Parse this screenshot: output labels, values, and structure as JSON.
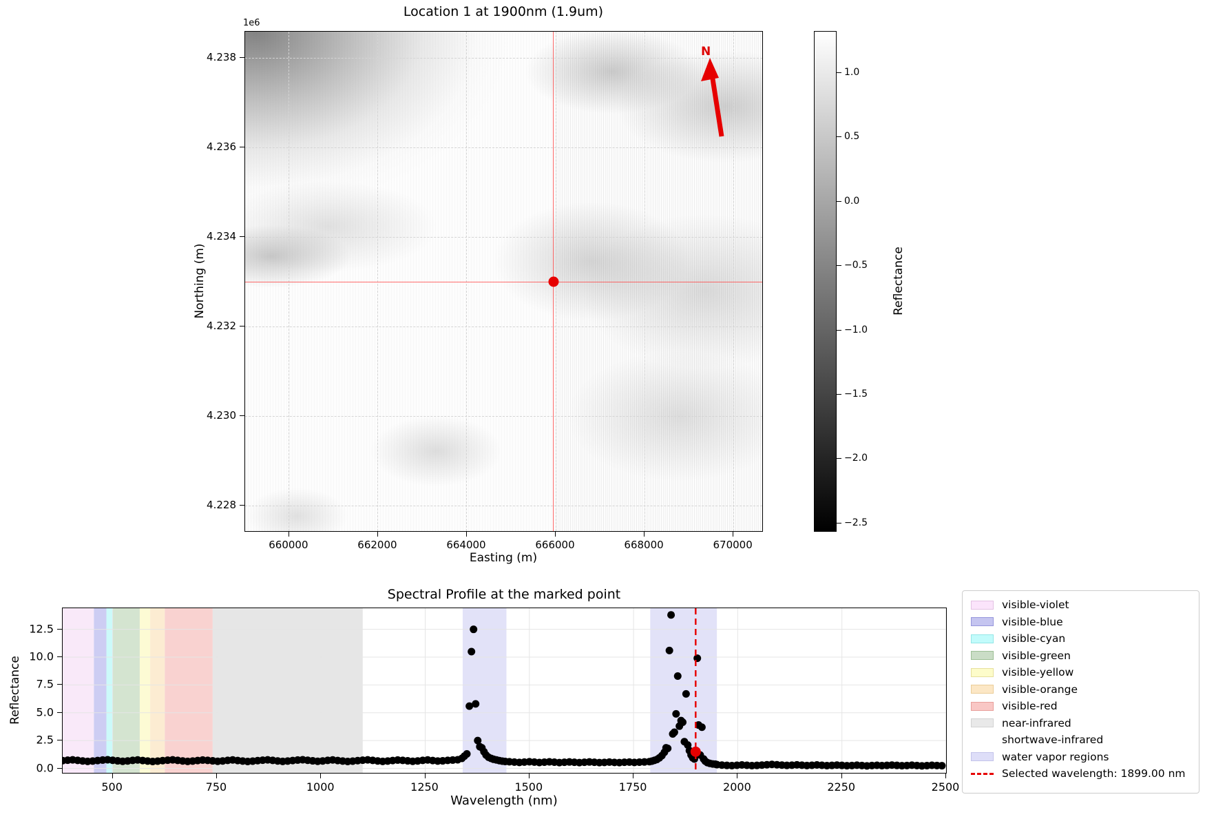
{
  "chart_data": [
    {
      "id": "location-map",
      "type": "heatmap",
      "title": "Location 1 at 1900nm (1.9um)",
      "xlabel": "Easting (m)",
      "ylabel": "Northing (m)",
      "offset_label": "1e6",
      "grid": true,
      "x_range": [
        659010,
        670680
      ],
      "y_range": [
        4227400,
        4238585
      ],
      "x_ticks": [
        {
          "v": 660000,
          "label": "660000"
        },
        {
          "v": 662000,
          "label": "662000"
        },
        {
          "v": 664000,
          "label": "664000"
        },
        {
          "v": 666000,
          "label": "666000"
        },
        {
          "v": 668000,
          "label": "668000"
        },
        {
          "v": 670000,
          "label": "670000"
        }
      ],
      "y_ticks": [
        {
          "v": 4238000,
          "label": "4.238"
        },
        {
          "v": 4236000,
          "label": "4.236"
        },
        {
          "v": 4234000,
          "label": "4.234"
        },
        {
          "v": 4232000,
          "label": "4.232"
        },
        {
          "v": 4230000,
          "label": "4.230"
        },
        {
          "v": 4228000,
          "label": "4.228"
        }
      ],
      "north_arrow_label": "N",
      "marked_point": {
        "easting": 665950,
        "northing": 4233000
      },
      "marker_color": "#e60000",
      "crosshair_color": "#ff5555",
      "colorbar": {
        "label": "Reflectance",
        "range": [
          -2.57,
          1.32
        ],
        "cmap": "gray",
        "ticks": [
          {
            "v": 1.0,
            "label": "1.0"
          },
          {
            "v": 0.5,
            "label": "0.5"
          },
          {
            "v": 0.0,
            "label": "0.0"
          },
          {
            "v": -0.5,
            "label": "−0.5"
          },
          {
            "v": -1.0,
            "label": "−1.0"
          },
          {
            "v": -1.5,
            "label": "−1.5"
          },
          {
            "v": -2.0,
            "label": "−2.0"
          },
          {
            "v": -2.5,
            "label": "−2.5"
          }
        ]
      }
    },
    {
      "id": "spectral-profile",
      "type": "scatter",
      "title": "Spectral Profile at the marked point",
      "xlabel": "Wavelength (nm)",
      "ylabel": "Reflectance",
      "xlim": [
        380,
        2500
      ],
      "ylim": [
        -0.4,
        14.4
      ],
      "grid": true,
      "marker_color": "#000000",
      "x_ticks": [
        {
          "v": 500,
          "label": "500"
        },
        {
          "v": 750,
          "label": "750"
        },
        {
          "v": 1000,
          "label": "1000"
        },
        {
          "v": 1250,
          "label": "1250"
        },
        {
          "v": 1500,
          "label": "1500"
        },
        {
          "v": 1750,
          "label": "1750"
        },
        {
          "v": 2000,
          "label": "2000"
        },
        {
          "v": 2250,
          "label": "2250"
        },
        {
          "v": 2500,
          "label": "2500"
        }
      ],
      "y_ticks": [
        {
          "v": 0.0,
          "label": "0.0"
        },
        {
          "v": 2.5,
          "label": "2.5"
        },
        {
          "v": 5.0,
          "label": "5.0"
        },
        {
          "v": 7.5,
          "label": "7.5"
        },
        {
          "v": 10.0,
          "label": "10.0"
        },
        {
          "v": 12.5,
          "label": "12.5"
        }
      ],
      "bands": [
        {
          "name": "visible-violet",
          "range": [
            380,
            455
          ],
          "color": "#f9e9f9"
        },
        {
          "name": "visible-blue",
          "range": [
            455,
            485
          ],
          "color": "#cdcdf3"
        },
        {
          "name": "visible-cyan",
          "range": [
            485,
            500
          ],
          "color": "#ccfafa"
        },
        {
          "name": "visible-green",
          "range": [
            500,
            565
          ],
          "color": "#d4e4d0"
        },
        {
          "name": "visible-yellow",
          "range": [
            565,
            590
          ],
          "color": "#fdfbd4"
        },
        {
          "name": "visible-orange",
          "range": [
            590,
            625
          ],
          "color": "#fcecd2"
        },
        {
          "name": "visible-red",
          "range": [
            625,
            740
          ],
          "color": "#f9d2d0"
        },
        {
          "name": "near-infrared",
          "range": [
            740,
            1100
          ],
          "color": "#e6e6e6"
        },
        {
          "name": "shortwave-infrared",
          "range": [
            1100,
            2500
          ],
          "color": "none"
        },
        {
          "name": "water-vapor-region-1",
          "range": [
            1340,
            1445
          ],
          "color": "#e2e2f8"
        },
        {
          "name": "water-vapor-region-2",
          "range": [
            1790,
            1950
          ],
          "color": "#e2e2f8"
        }
      ],
      "selected_wavelength_nm": 1899.0,
      "selected_line_color": "#e60000",
      "selected_point": {
        "wavelength": 1899,
        "reflectance": 1.5
      },
      "spectrum_segments": [
        {
          "x_start": 380,
          "x_step": 12,
          "y": [
            0.7,
            0.74,
            0.77,
            0.72,
            0.67,
            0.63,
            0.66,
            0.71,
            0.75,
            0.78,
            0.73,
            0.68,
            0.64,
            0.67,
            0.72,
            0.76,
            0.71,
            0.66,
            0.62,
            0.65,
            0.7,
            0.74,
            0.77,
            0.72,
            0.67,
            0.63,
            0.66,
            0.71,
            0.75,
            0.72,
            0.68,
            0.64,
            0.67,
            0.72,
            0.76,
            0.71,
            0.66,
            0.62,
            0.65,
            0.7,
            0.74,
            0.77,
            0.72,
            0.67,
            0.63,
            0.66,
            0.71,
            0.75,
            0.78,
            0.73,
            0.68,
            0.64,
            0.67,
            0.72,
            0.76,
            0.71,
            0.66,
            0.62,
            0.65,
            0.7,
            0.74,
            0.77,
            0.72,
            0.67,
            0.63,
            0.66,
            0.71,
            0.75,
            0.72,
            0.68,
            0.64,
            0.67,
            0.72,
            0.76,
            0.71,
            0.66,
            0.68,
            0.72,
            0.75,
            0.78
          ]
        },
        {
          "points": [
            [
              1338,
              0.9
            ],
            [
              1344,
              1.1
            ],
            [
              1350,
              1.3
            ],
            [
              1356,
              5.6
            ],
            [
              1361,
              10.5
            ],
            [
              1366,
              12.5
            ],
            [
              1371,
              5.8
            ],
            [
              1376,
              2.5
            ],
            [
              1381,
              1.95
            ],
            [
              1386,
              1.85
            ],
            [
              1391,
              1.5
            ],
            [
              1396,
              1.2
            ],
            [
              1402,
              1.0
            ],
            [
              1408,
              0.9
            ],
            [
              1414,
              0.82
            ],
            [
              1421,
              0.76
            ],
            [
              1428,
              0.7
            ],
            [
              1435,
              0.65
            ],
            [
              1442,
              0.62
            ]
          ]
        },
        {
          "x_start": 1452,
          "x_step": 12,
          "y": [
            0.6,
            0.57,
            0.54,
            0.57,
            0.6,
            0.57,
            0.53,
            0.56,
            0.59,
            0.56,
            0.52,
            0.55,
            0.58,
            0.55,
            0.52,
            0.55,
            0.58,
            0.55,
            0.52,
            0.54,
            0.57,
            0.54,
            0.52,
            0.55,
            0.57,
            0.54,
            0.56,
            0.58,
            0.61
          ]
        },
        {
          "points": [
            [
              1794,
              0.65
            ],
            [
              1800,
              0.72
            ],
            [
              1806,
              0.8
            ],
            [
              1812,
              0.95
            ],
            [
              1818,
              1.15
            ],
            [
              1824,
              1.45
            ],
            [
              1828,
              1.85
            ],
            [
              1832,
              1.8
            ],
            [
              1836,
              10.6
            ],
            [
              1840,
              13.8
            ],
            [
              1844,
              3.1
            ],
            [
              1848,
              3.25
            ],
            [
              1852,
              4.9
            ],
            [
              1856,
              8.3
            ],
            [
              1860,
              3.8
            ],
            [
              1864,
              4.3
            ],
            [
              1868,
              4.15
            ],
            [
              1872,
              2.4
            ],
            [
              1876,
              6.7
            ],
            [
              1880,
              2.1
            ],
            [
              1884,
              1.6
            ],
            [
              1888,
              1.2
            ],
            [
              1892,
              0.95
            ],
            [
              1896,
              0.85
            ],
            [
              1903,
              9.9
            ],
            [
              1906,
              3.9
            ],
            [
              1910,
              1.2
            ],
            [
              1914,
              3.7
            ],
            [
              1918,
              0.85
            ],
            [
              1922,
              0.65
            ],
            [
              1927,
              0.52
            ],
            [
              1933,
              0.45
            ],
            [
              1940,
              0.4
            ],
            [
              1946,
              0.38
            ]
          ]
        },
        {
          "x_start": 1950,
          "x_step": 12,
          "y": [
            0.34,
            0.3,
            0.27,
            0.25,
            0.28,
            0.31,
            0.28,
            0.25,
            0.27,
            0.3,
            0.33,
            0.36,
            0.33,
            0.3,
            0.27,
            0.29,
            0.32,
            0.29,
            0.26,
            0.28,
            0.31,
            0.28,
            0.25,
            0.27,
            0.3,
            0.27,
            0.24,
            0.26,
            0.29,
            0.26,
            0.23,
            0.26,
            0.28,
            0.25,
            0.27,
            0.3,
            0.27,
            0.24,
            0.26,
            0.29,
            0.26,
            0.23,
            0.25,
            0.28,
            0.26,
            0.24
          ]
        }
      ],
      "legend": {
        "items": [
          {
            "label": "visible-violet",
            "type": "patch",
            "face": "#fbe4fb",
            "edge": "#e3c2e3"
          },
          {
            "label": "visible-blue",
            "type": "patch",
            "face": "#c5c5f0",
            "edge": "#9696dc"
          },
          {
            "label": "visible-cyan",
            "type": "patch",
            "face": "#c2fbfb",
            "edge": "#93e6e6"
          },
          {
            "label": "visible-green",
            "type": "patch",
            "face": "#caddc6",
            "edge": "#9dbf96"
          },
          {
            "label": "visible-yellow",
            "type": "patch",
            "face": "#fdfcca",
            "edge": "#e6df9c"
          },
          {
            "label": "visible-orange",
            "type": "patch",
            "face": "#fce7c5",
            "edge": "#eacd98"
          },
          {
            "label": "visible-red",
            "type": "patch",
            "face": "#f9c7c5",
            "edge": "#e89f9b"
          },
          {
            "label": "near-infrared",
            "type": "patch",
            "face": "#e9e9e9",
            "edge": "#d2d2d2"
          },
          {
            "label": "shortwave-infrared",
            "type": "patch",
            "face": "#ffffff",
            "edge": "#ffffff"
          },
          {
            "label": "water vapor regions",
            "type": "patch",
            "face": "#dedef8",
            "edge": "#c3c3ea"
          },
          {
            "label": "Selected wavelength: 1899.00 nm",
            "type": "dashed-line",
            "color": "#e60000"
          }
        ]
      }
    }
  ]
}
